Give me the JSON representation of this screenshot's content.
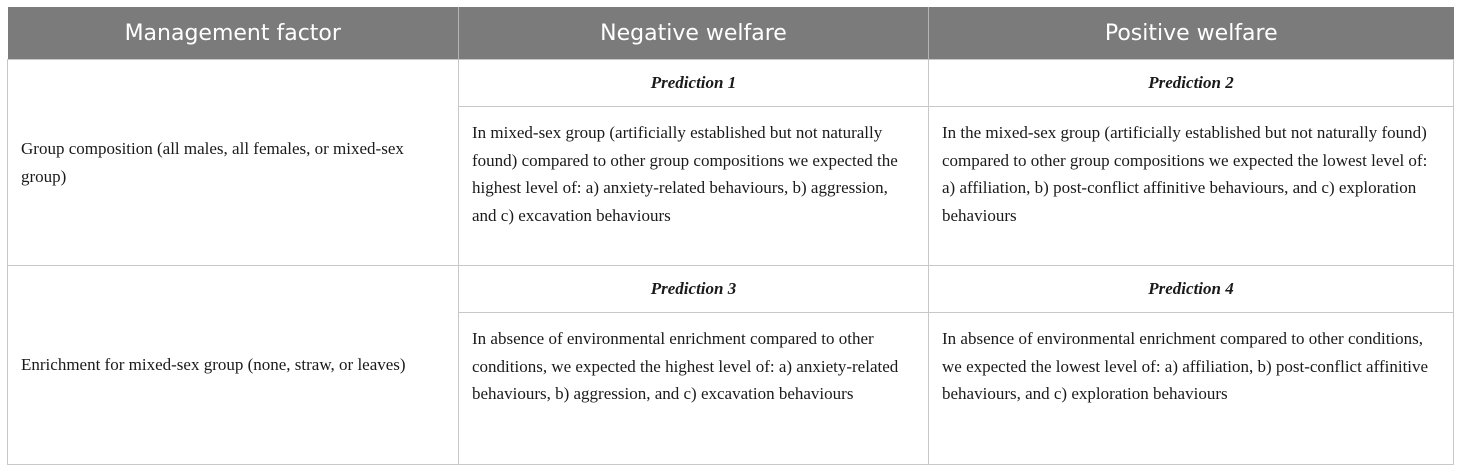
{
  "table": {
    "headers": [
      "Management factor",
      "Negative welfare",
      "Positive welfare"
    ],
    "rows": [
      {
        "factor": "Group composition (all males, all females, or mixed-sex group)",
        "negative": {
          "label": "Prediction 1",
          "text": "In mixed-sex group (artificially established but not naturally found) compared to other group compositions we expected the highest level of: a) anxiety-related behaviours, b) aggression, and c) excavation behaviours"
        },
        "positive": {
          "label": "Prediction 2",
          "text": "In the mixed-sex group (artificially established but not naturally found) compared to other group compositions we expected the lowest level of: a) affiliation, b) post-conflict affinitive behaviours, and c) exploration behaviours"
        }
      },
      {
        "factor": "Enrichment for mixed-sex group (none, straw, or leaves)",
        "negative": {
          "label": "Prediction 3",
          "text": "In absence of environmental enrichment compared to other conditions, we expected the highest level of: a) anxiety-related behaviours, b) aggression, and c) excavation behaviours"
        },
        "positive": {
          "label": "Prediction 4",
          "text": "In absence of environmental enrichment compared to other conditions, we expected the lowest level of: a) affiliation, b) post-conflict affinitive behaviours, and c) exploration behaviours"
        }
      }
    ]
  }
}
